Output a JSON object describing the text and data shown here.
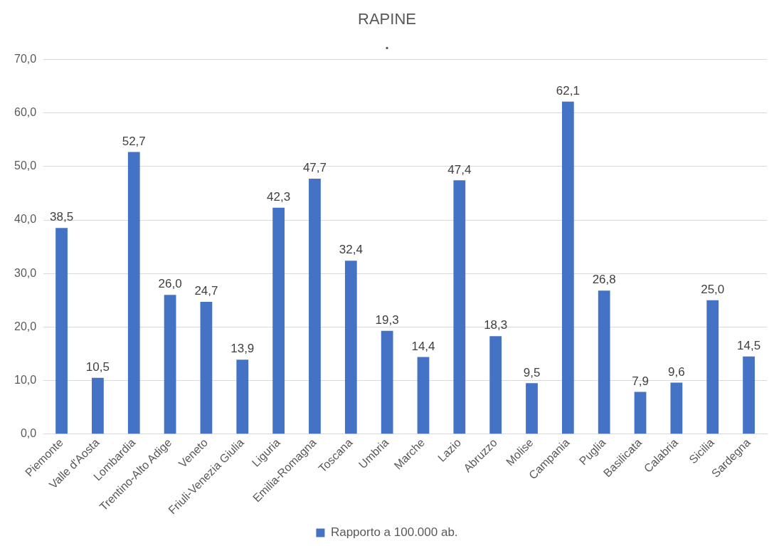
{
  "chart_data": {
    "type": "bar",
    "title": "RAPINE",
    "subtitle": ".",
    "categories": [
      "Piemonte",
      "Valle d'Aosta",
      "Lombardia",
      "Trentino-Alto Adige",
      "Veneto",
      "Friuli-Venezia Giulia",
      "Liguria",
      "Emilia-Romagna",
      "Toscana",
      "Umbria",
      "Marche",
      "Lazio",
      "Abruzzo",
      "Molise",
      "Campania",
      "Puglia",
      "Basilicata",
      "Calabria",
      "Sicilia",
      "Sardegna"
    ],
    "series": [
      {
        "name": "Rapporto a 100.000 ab.",
        "color": "#4472c4",
        "values": [
          38.5,
          10.5,
          52.7,
          26.0,
          24.7,
          13.9,
          42.3,
          47.7,
          32.4,
          19.3,
          14.4,
          47.4,
          18.3,
          9.5,
          62.1,
          26.8,
          7.9,
          9.6,
          25.0,
          14.5
        ],
        "value_labels": [
          "38,5",
          "10,5",
          "52,7",
          "26,0",
          "24,7",
          "13,9",
          "42,3",
          "47,7",
          "32,4",
          "19,3",
          "14,4",
          "47,4",
          "18,3",
          "9,5",
          "62,1",
          "26,8",
          "7,9",
          "9,6",
          "25,0",
          "14,5"
        ]
      }
    ],
    "ylim": [
      0,
      70
    ],
    "yticks": [
      {
        "value": 0,
        "label": "0,0"
      },
      {
        "value": 10,
        "label": "10,0"
      },
      {
        "value": 20,
        "label": "20,0"
      },
      {
        "value": 30,
        "label": "30,0"
      },
      {
        "value": 40,
        "label": "40,0"
      },
      {
        "value": 50,
        "label": "50,0"
      },
      {
        "value": 60,
        "label": "60,0"
      },
      {
        "value": 70,
        "label": "70,0"
      }
    ],
    "grid": "y",
    "legend": "bottom"
  }
}
